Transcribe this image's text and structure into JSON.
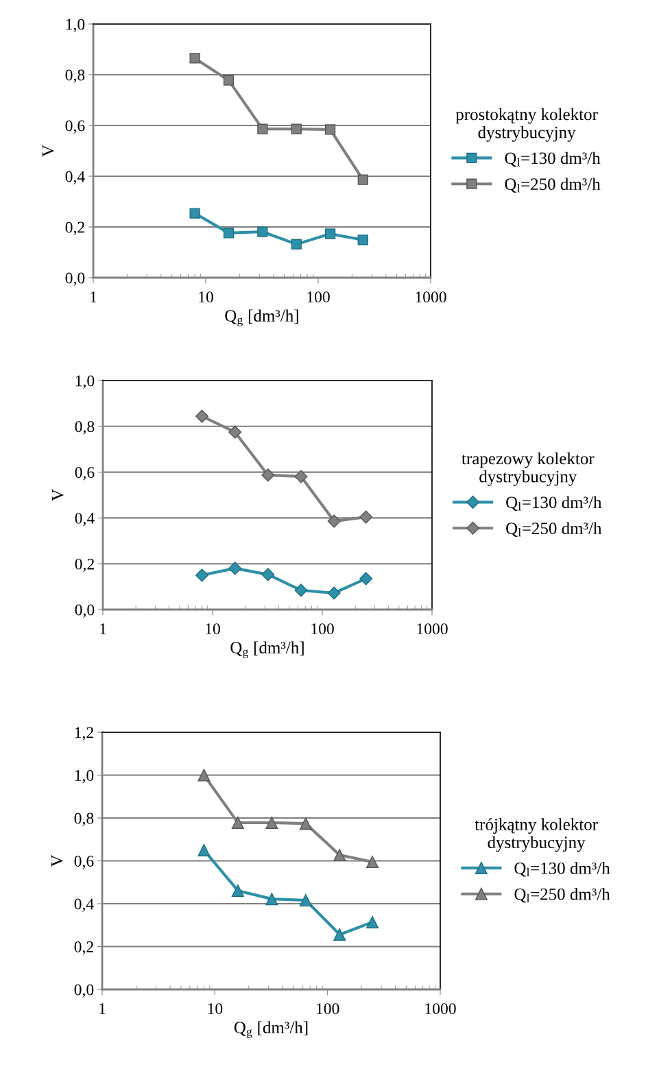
{
  "chart_data": [
    {
      "type": "line",
      "xlabel": "Q$_{g}$ [dm³/h]",
      "ylabel": "V",
      "legend_title": "prostokątny kolektor\ndystrybucyjny",
      "log": "x",
      "xlim": [
        1,
        1000
      ],
      "xticks": [
        1,
        10,
        100,
        1000
      ],
      "ylim": [
        0,
        1.0
      ],
      "yticks": [
        {
          "value": 0,
          "label": "0,0"
        },
        {
          "value": 0.2,
          "label": "0,2"
        },
        {
          "value": 0.4,
          "label": "0,4"
        },
        {
          "value": 0.6,
          "label": "0,6"
        },
        {
          "value": 0.8,
          "label": "0,8"
        },
        {
          "value": 1.0,
          "label": "1,0"
        }
      ],
      "grid": "y",
      "legend": "right",
      "marker": "square",
      "x": [
        8,
        16,
        32,
        64,
        128,
        250
      ],
      "series": [
        {
          "name": "Q$_{l}$=130 dm³/h",
          "color": "#2e90a8",
          "values": [
            0.254,
            0.176,
            0.181,
            0.132,
            0.173,
            0.149
          ]
        },
        {
          "name": "Q$_{l}$=250 dm³/h",
          "color": "#808080",
          "values": [
            0.865,
            0.778,
            0.586,
            0.586,
            0.584,
            0.386
          ]
        }
      ]
    },
    {
      "type": "line",
      "xlabel": "Q$_{g}$ [dm³/h]",
      "ylabel": "V",
      "legend_title": "trapezowy kolektor\ndystrybucyjny",
      "log": "x",
      "xlim": [
        1,
        1000
      ],
      "xticks": [
        1,
        10,
        100,
        1000
      ],
      "ylim": [
        0,
        1.0
      ],
      "yticks": [
        {
          "value": 0,
          "label": "0,0"
        },
        {
          "value": 0.2,
          "label": "0,2"
        },
        {
          "value": 0.4,
          "label": "0,4"
        },
        {
          "value": 0.6,
          "label": "0,6"
        },
        {
          "value": 0.8,
          "label": "0,8"
        },
        {
          "value": 1.0,
          "label": "1,0"
        }
      ],
      "grid": "y",
      "legend": "right",
      "marker": "diamond",
      "x": [
        8,
        16,
        32,
        64,
        128,
        250
      ],
      "series": [
        {
          "name": "Q$_{l}$=130 dm³/h",
          "color": "#2e90a8",
          "values": [
            0.15,
            0.18,
            0.153,
            0.084,
            0.072,
            0.135
          ]
        },
        {
          "name": "Q$_{l}$=250 dm³/h",
          "color": "#808080",
          "values": [
            0.844,
            0.775,
            0.587,
            0.581,
            0.386,
            0.404
          ]
        }
      ]
    },
    {
      "type": "line",
      "xlabel": "Q$_{g}$ [dm³/h]",
      "ylabel": "V",
      "legend_title": "trójkątny kolektor\ndystrybucyjny",
      "log": "x",
      "xlim": [
        1,
        1000
      ],
      "xticks": [
        1,
        10,
        100,
        1000
      ],
      "ylim": [
        0,
        1.2
      ],
      "yticks": [
        {
          "value": 0,
          "label": "0,0"
        },
        {
          "value": 0.2,
          "label": "0,2"
        },
        {
          "value": 0.4,
          "label": "0,4"
        },
        {
          "value": 0.6,
          "label": "0,6"
        },
        {
          "value": 0.8,
          "label": "0,8"
        },
        {
          "value": 1.0,
          "label": "1,0"
        },
        {
          "value": 1.2,
          "label": "1,2"
        }
      ],
      "grid": "y",
      "legend": "right",
      "marker": "triangle",
      "x": [
        8,
        16,
        32,
        64,
        128,
        250
      ],
      "series": [
        {
          "name": "Q$_{l}$=130 dm³/h",
          "color": "#2e90a8",
          "values": [
            0.65,
            0.461,
            0.422,
            0.416,
            0.256,
            0.314
          ]
        },
        {
          "name": "Q$_{l}$=250 dm³/h",
          "color": "#808080",
          "values": [
            1.0,
            0.778,
            0.778,
            0.774,
            0.627,
            0.595
          ]
        }
      ]
    }
  ]
}
